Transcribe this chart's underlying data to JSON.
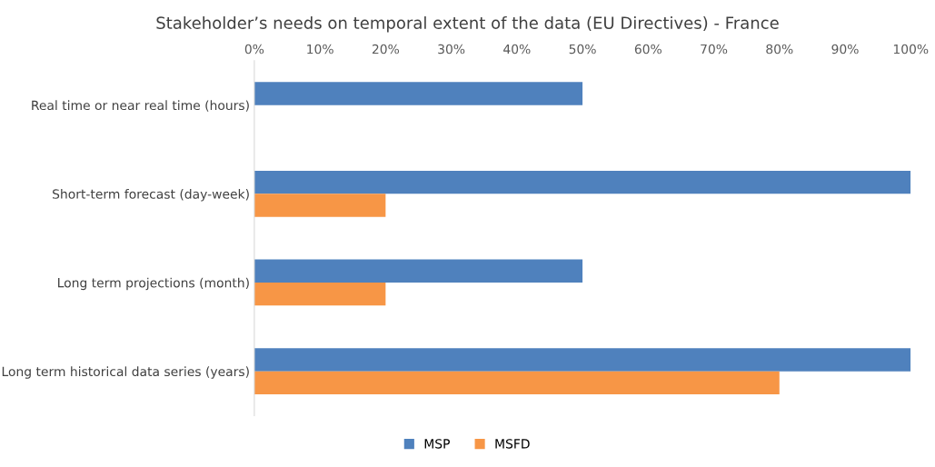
{
  "chart_data": {
    "type": "bar",
    "orientation": "horizontal",
    "title": "Stakeholder’s needs on temporal extent of the data (EU Directives) - France",
    "categories": [
      "Real time or near real time (hours)",
      "Short-term forecast (day-week)",
      "Long term projections (month)",
      "Long term historical data series (years)"
    ],
    "series": [
      {
        "name": "MSP",
        "color": "#4f81bd",
        "values": [
          50,
          100,
          50,
          100
        ]
      },
      {
        "name": "MSFD",
        "color": "#f79646",
        "values": [
          0,
          20,
          20,
          80
        ]
      }
    ],
    "xlim": [
      0,
      100
    ],
    "xticks": [
      {
        "value": 0,
        "label": "0%"
      },
      {
        "value": 10,
        "label": "10%"
      },
      {
        "value": 20,
        "label": "20%"
      },
      {
        "value": 30,
        "label": "30%"
      },
      {
        "value": 40,
        "label": "40%"
      },
      {
        "value": 50,
        "label": "50%"
      },
      {
        "value": 60,
        "label": "60%"
      },
      {
        "value": 70,
        "label": "70%"
      },
      {
        "value": 80,
        "label": "80%"
      },
      {
        "value": 90,
        "label": "90%"
      },
      {
        "value": 100,
        "label": "100%"
      }
    ],
    "grid": false,
    "legend": "bottom"
  }
}
